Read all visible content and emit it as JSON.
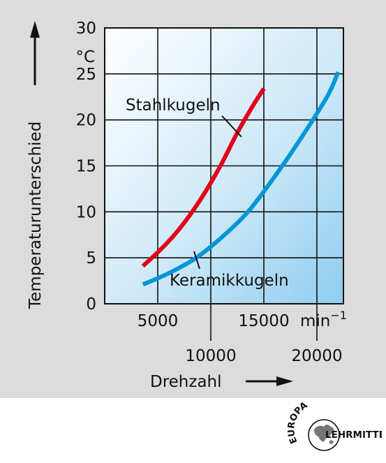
{
  "chart_data": {
    "type": "line",
    "xlabel": "Drehzahl",
    "ylabel": "Temperaturunterschied",
    "x_unit": "min",
    "x_unit_exponent": "−1",
    "y_unit": "°C",
    "xlim": [
      0,
      22500
    ],
    "ylim": [
      0,
      30
    ],
    "x_ticks": [
      {
        "value": 5000,
        "label": "5000"
      },
      {
        "value": 10000,
        "label": "10000"
      },
      {
        "value": 15000,
        "label": "15000"
      },
      {
        "value": 20000,
        "label": "20000"
      }
    ],
    "y_ticks": [
      {
        "value": 0,
        "label": "0"
      },
      {
        "value": 5,
        "label": "5"
      },
      {
        "value": 10,
        "label": "10"
      },
      {
        "value": 15,
        "label": "15"
      },
      {
        "value": 20,
        "label": "20"
      },
      {
        "value": 25,
        "label": "25"
      },
      {
        "value": 30,
        "label": "30"
      }
    ],
    "grid": true,
    "series": [
      {
        "name": "Stahlkugeln",
        "color": "#e2001a",
        "x": [
          3600,
          5000,
          6500,
          8000,
          9500,
          11000,
          12500,
          14000,
          15000
        ],
        "y": [
          4.1,
          5.6,
          7.4,
          9.6,
          12.2,
          15.2,
          18.6,
          21.6,
          23.4
        ]
      },
      {
        "name": "Keramikkugeln",
        "color": "#0096d6",
        "x": [
          3600,
          6000,
          8500,
          11000,
          13500,
          16000,
          18500,
          21000,
          22000
        ],
        "y": [
          2.1,
          3.3,
          4.9,
          7.2,
          10.0,
          13.8,
          18.0,
          22.6,
          25.2
        ]
      }
    ]
  },
  "logo": {
    "top_text": "EUROPA",
    "bottom_text": "LEHRMITTEL"
  }
}
